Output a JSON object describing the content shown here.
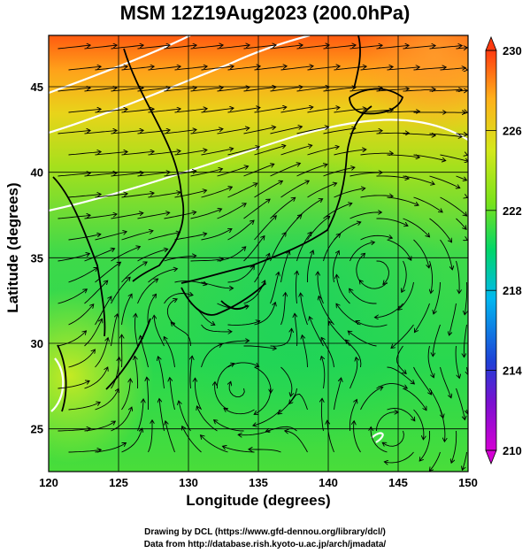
{
  "title": "MSM 12Z19Aug2023 (200.0hPa)",
  "axes": {
    "xlabel": "Longitude (degrees)",
    "ylabel": "Latitude  (degrees)",
    "x_ticks": [
      "120",
      "125",
      "130",
      "135",
      "140",
      "145",
      "150"
    ],
    "y_ticks": [
      "25",
      "30",
      "35",
      "40",
      "45"
    ]
  },
  "colorbar": {
    "ticks": [
      "230",
      "226",
      "222",
      "218",
      "214",
      "210"
    ],
    "min": 210,
    "max": 230,
    "colors": [
      "#d400d4",
      "#1f3fd6",
      "#00c8ff",
      "#00d66a",
      "#b8e600",
      "#ffd400",
      "#ff4a00"
    ]
  },
  "credits": {
    "line1": "Drawing by DCL (https://www.gfd-dennou.org/library/dcl/)",
    "line2": "Data from http://database.rish.kyoto-u.ac.jp/arch/jmadata/"
  },
  "map": {
    "lon_range": [
      120,
      150
    ],
    "lat_range": [
      22.5,
      48
    ],
    "field": "temperature (K) with streamlines",
    "contour_color": "#ffffff",
    "land_color": "#000000"
  }
}
